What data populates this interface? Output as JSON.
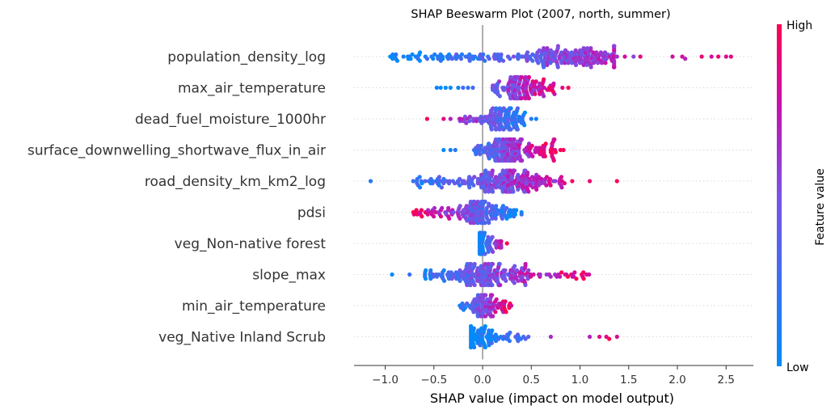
{
  "chart_data": {
    "type": "scatter",
    "subtype": "shap-beeswarm",
    "title": "SHAP Beeswarm Plot (2007, north, summer)",
    "xlabel": "SHAP value (impact on model output)",
    "xlim": [
      -1.32,
      2.78
    ],
    "xticks": [
      -1.0,
      -0.5,
      0.0,
      0.5,
      1.0,
      1.5,
      2.0,
      2.5
    ],
    "xtick_labels": [
      "−1.0",
      "−0.5",
      "0.0",
      "0.5",
      "1.0",
      "1.5",
      "2.0",
      "2.5"
    ],
    "grid": false,
    "colorbar": {
      "label": "Feature value",
      "high_label": "High",
      "low_label": "Low",
      "low_color": "#008bfb",
      "high_color": "#ff0052",
      "placement": "right"
    },
    "features": [
      {
        "name": "population_density_log",
        "min": -1.0,
        "max": 2.55,
        "core": [
          -0.95,
          1.35
        ],
        "mode": 0.95,
        "low_side": "left",
        "n": 260,
        "outliers": [
          1.38,
          1.46,
          1.55,
          1.62,
          1.95,
          2.05,
          2.08,
          2.25,
          2.35,
          2.42,
          2.5,
          2.55
        ]
      },
      {
        "name": "max_air_temperature",
        "min": -0.47,
        "max": 0.88,
        "core": [
          0.1,
          0.75
        ],
        "mode": 0.4,
        "low_side": "left",
        "n": 150,
        "outliers": [
          -0.47,
          -0.43,
          -0.38,
          -0.33,
          -0.25,
          -0.2,
          -0.15,
          -0.1,
          0.82,
          0.88
        ]
      },
      {
        "name": "dead_fuel_moisture_1000hr",
        "min": -0.57,
        "max": 0.55,
        "core": [
          -0.25,
          0.45
        ],
        "mode": 0.22,
        "low_side": "right",
        "n": 130,
        "outliers": [
          -0.57,
          -0.4,
          -0.33,
          0.5,
          0.55
        ]
      },
      {
        "name": "surface_downwelling_shortwave_flux_in_air",
        "min": -0.4,
        "max": 0.83,
        "core": [
          -0.1,
          0.75
        ],
        "mode": 0.22,
        "low_side": "left",
        "n": 200,
        "outliers": [
          -0.4,
          -0.33,
          -0.28,
          0.8,
          0.83
        ]
      },
      {
        "name": "road_density_km_km2_log",
        "min": -1.15,
        "max": 1.38,
        "core": [
          -0.72,
          0.85
        ],
        "mode": 0.25,
        "low_side": "left",
        "n": 240,
        "outliers": [
          -1.15,
          0.92,
          1.1,
          1.38
        ]
      },
      {
        "name": "pdsi",
        "min": -0.77,
        "max": 0.45,
        "core": [
          -0.72,
          0.4
        ],
        "mode": 0.0,
        "low_side": "right",
        "n": 180,
        "outliers": []
      },
      {
        "name": "veg_Non-native forest ",
        "min": -0.03,
        "max": 0.25,
        "core": [
          -0.03,
          0.2
        ],
        "mode": -0.01,
        "low_side": "left",
        "n": 60,
        "outliers": [
          0.25
        ]
      },
      {
        "name": "slope_max",
        "min": -0.93,
        "max": 1.15,
        "core": [
          -0.6,
          1.1
        ],
        "mode": 0.05,
        "low_side": "left",
        "n": 240,
        "outliers": [
          -0.93,
          -0.75
        ]
      },
      {
        "name": "min_air_temperature",
        "min": -0.33,
        "max": 0.33,
        "core": [
          -0.3,
          0.33
        ],
        "mode": 0.03,
        "low_side": "left",
        "n": 110,
        "outliers": []
      },
      {
        "name": "veg_Native Inland Scrub ",
        "min": -0.12,
        "max": 1.38,
        "core": [
          -0.12,
          0.45
        ],
        "mode": -0.01,
        "low_side": "left",
        "n": 90,
        "outliers": [
          0.47,
          0.7,
          1.1,
          1.2,
          1.27,
          1.3,
          1.38
        ]
      }
    ]
  }
}
